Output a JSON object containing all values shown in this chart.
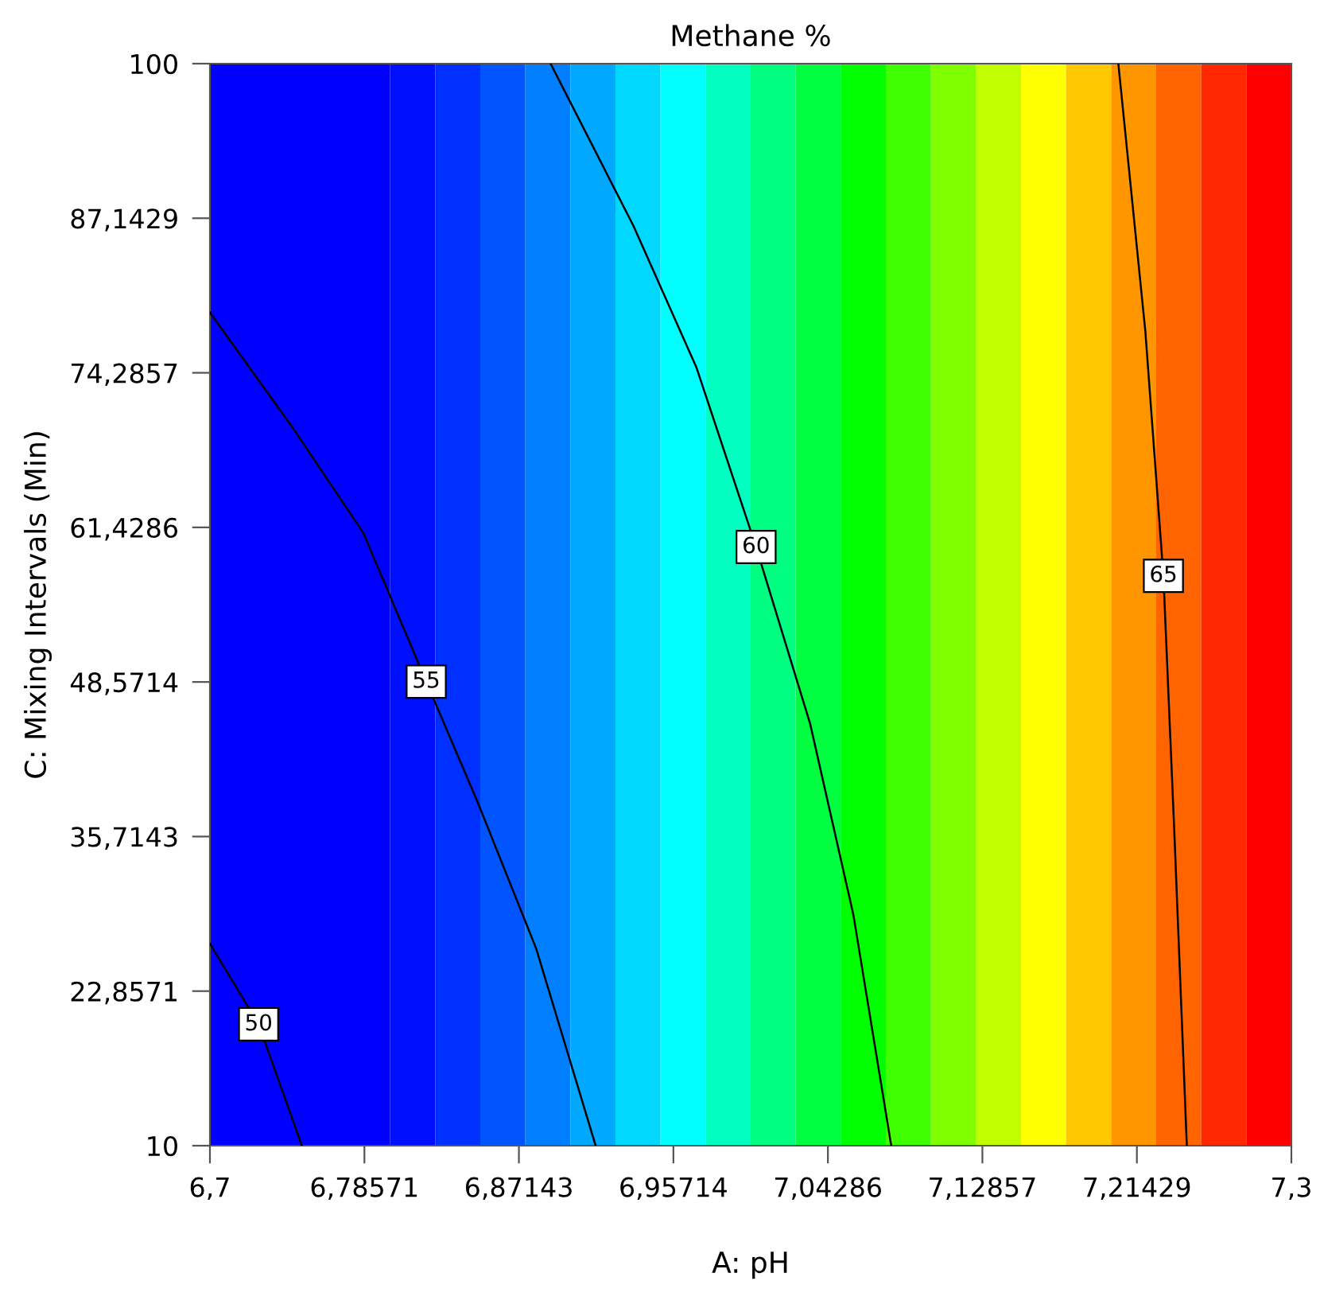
{
  "chart_data": {
    "type": "line",
    "title": "Methane %",
    "xlabel": "A: pH",
    "ylabel": "C: Mixing Intervals (Min)",
    "xlim": [
      6.7,
      7.3
    ],
    "ylim": [
      10,
      100
    ],
    "xticks": [
      {
        "value": 6.7,
        "label": "6,7"
      },
      {
        "value": 6.78571,
        "label": "6,78571"
      },
      {
        "value": 6.87143,
        "label": "6,87143"
      },
      {
        "value": 6.95714,
        "label": "6,95714"
      },
      {
        "value": 7.04286,
        "label": "7,04286"
      },
      {
        "value": 7.12857,
        "label": "7,12857"
      },
      {
        "value": 7.21429,
        "label": "7,21429"
      },
      {
        "value": 7.3,
        "label": "7,3"
      }
    ],
    "yticks": [
      {
        "value": 10,
        "label": "10"
      },
      {
        "value": 22.8571,
        "label": "22,8571"
      },
      {
        "value": 35.7143,
        "label": "35,7143"
      },
      {
        "value": 48.5714,
        "label": "48,5714"
      },
      {
        "value": 61.4286,
        "label": "61,4286"
      },
      {
        "value": 74.2857,
        "label": "74,2857"
      },
      {
        "value": 87.1429,
        "label": "87,1429"
      },
      {
        "value": 100,
        "label": "100"
      }
    ],
    "grid": false,
    "legend": false,
    "marker": "none",
    "line_style": "solid",
    "series": [
      {
        "name": "50",
        "color": "#000000",
        "x": [
          6.7,
          6.727,
          6.751
        ],
        "values": [
          26.8,
          20.1,
          10
        ]
      },
      {
        "name": "55",
        "color": "#000000",
        "x": [
          6.7,
          6.746,
          6.785,
          6.82,
          6.849,
          6.881,
          6.914
        ],
        "values": [
          79.3,
          69.7,
          61.0,
          48.6,
          38.4,
          26.4,
          10
        ]
      },
      {
        "name": "60",
        "color": "#000000",
        "x": [
          6.889,
          6.935,
          6.97,
          7.003,
          7.033,
          7.057,
          7.078
        ],
        "values": [
          100,
          86.5,
          74.7,
          59.8,
          45.1,
          29.2,
          10
        ]
      },
      {
        "name": "65",
        "color": "#000000",
        "x": [
          7.204,
          7.219,
          7.229,
          7.235,
          7.242
        ],
        "values": [
          100,
          77.7,
          57.4,
          36.3,
          10
        ]
      }
    ],
    "bands": [
      {
        "axis": "x",
        "from": 6.7,
        "to": 6.8,
        "color": "#0000ff"
      },
      {
        "axis": "x",
        "from": 6.8,
        "to": 6.825,
        "color": "#0010ff"
      },
      {
        "axis": "x",
        "from": 6.825,
        "to": 6.85,
        "color": "#0030ff"
      },
      {
        "axis": "x",
        "from": 6.85,
        "to": 6.875,
        "color": "#0055ff"
      },
      {
        "axis": "x",
        "from": 6.875,
        "to": 6.9,
        "color": "#0080ff"
      },
      {
        "axis": "x",
        "from": 6.9,
        "to": 6.925,
        "color": "#00a8ff"
      },
      {
        "axis": "x",
        "from": 6.925,
        "to": 6.95,
        "color": "#00d8ff"
      },
      {
        "axis": "x",
        "from": 6.95,
        "to": 6.975,
        "color": "#00ffff"
      },
      {
        "axis": "x",
        "from": 6.975,
        "to": 7.0,
        "color": "#00ffc0"
      },
      {
        "axis": "x",
        "from": 7.0,
        "to": 7.025,
        "color": "#00ff80"
      },
      {
        "axis": "x",
        "from": 7.025,
        "to": 7.05,
        "color": "#00ff40"
      },
      {
        "axis": "x",
        "from": 7.05,
        "to": 7.075,
        "color": "#00ff00"
      },
      {
        "axis": "x",
        "from": 7.075,
        "to": 7.1,
        "color": "#40ff00"
      },
      {
        "axis": "x",
        "from": 7.1,
        "to": 7.125,
        "color": "#80ff00"
      },
      {
        "axis": "x",
        "from": 7.125,
        "to": 7.15,
        "color": "#c0ff00"
      },
      {
        "axis": "x",
        "from": 7.15,
        "to": 7.175,
        "color": "#ffff00"
      },
      {
        "axis": "x",
        "from": 7.175,
        "to": 7.2,
        "color": "#ffc800"
      },
      {
        "axis": "x",
        "from": 7.2,
        "to": 7.225,
        "color": "#ff9600"
      },
      {
        "axis": "x",
        "from": 7.225,
        "to": 7.25,
        "color": "#ff6400"
      },
      {
        "axis": "x",
        "from": 7.25,
        "to": 7.275,
        "color": "#ff2800"
      },
      {
        "axis": "x",
        "from": 7.275,
        "to": 7.3,
        "color": "#ff0000"
      }
    ]
  }
}
